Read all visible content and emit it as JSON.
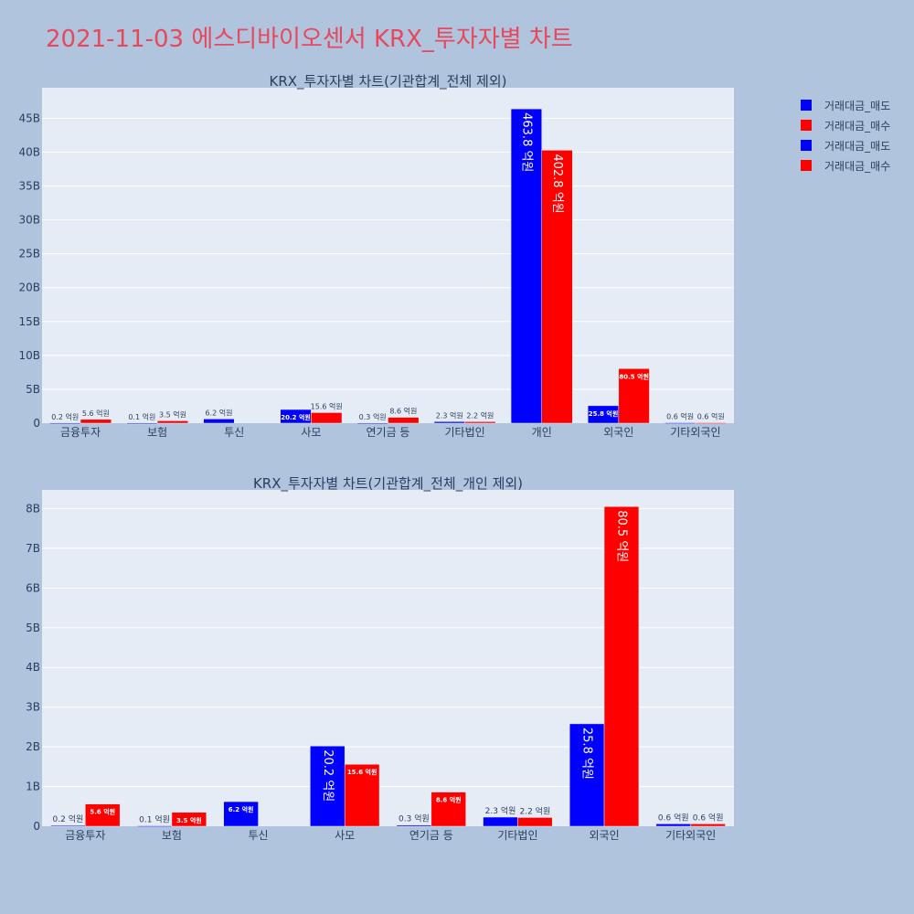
{
  "title": "2021-11-03 에스디바이오센서 KRX_투자자별 차트",
  "colors": {
    "sell": "#0000ff",
    "buy": "#ff0000",
    "plot_bg": "#e5ecf6",
    "page_bg": "#b0c4de"
  },
  "legend": [
    {
      "label": "거래대금_매도",
      "color": "#0000ff"
    },
    {
      "label": "거래대금_매수",
      "color": "#ff0000"
    },
    {
      "label": "거래대금_매도",
      "color": "#0000ff"
    },
    {
      "label": "거래대금_매수",
      "color": "#ff0000"
    }
  ],
  "chart_data": [
    {
      "type": "bar",
      "title": "KRX_투자자별 차트(기관합계_전체 제외)",
      "categories": [
        "금융투자",
        "보험",
        "투신",
        "사모",
        "연기금 등",
        "기타법인",
        "개인",
        "외국인",
        "기타외국인"
      ],
      "ylim": [
        0,
        49500000000
      ],
      "yticks": [
        0,
        5000000000,
        10000000000,
        15000000000,
        20000000000,
        25000000000,
        30000000000,
        35000000000,
        40000000000,
        45000000000
      ],
      "yticklabels": [
        "0",
        "5B",
        "10B",
        "15B",
        "20B",
        "25B",
        "30B",
        "35B",
        "40B",
        "45B"
      ],
      "grid": true,
      "legend_position": "right",
      "series": [
        {
          "name": "거래대금_매도",
          "color": "#0000ff",
          "values": [
            20000000,
            10000000,
            620000000,
            2020000000,
            30000000,
            230000000,
            46380000000,
            2580000000,
            60000000
          ],
          "labels": [
            "0.2 억원",
            "0.1 억원",
            "6.2 억원",
            "20.2 억원",
            "0.3 억원",
            "2.3 억원",
            "463.8 억원",
            "25.8 억원",
            "0.6 억원"
          ]
        },
        {
          "name": "거래대금_매수",
          "color": "#ff0000",
          "values": [
            560000000,
            350000000,
            0,
            1560000000,
            860000000,
            220000000,
            40280000000,
            8050000000,
            60000000
          ],
          "labels": [
            "5.6 억원",
            "3.5 억원",
            "",
            "15.6 억원",
            "8.6 억원",
            "2.2 억원",
            "402.8 억원",
            "80.5 억원",
            "0.6 억원"
          ]
        }
      ]
    },
    {
      "type": "bar",
      "title": "KRX_투자자별 차트(기관합계_전체_개인 제외)",
      "categories": [
        "금융투자",
        "보험",
        "투신",
        "사모",
        "연기금 등",
        "기타법인",
        "외국인",
        "기타외국인"
      ],
      "ylim": [
        0,
        8470000000
      ],
      "yticks": [
        0,
        1000000000,
        2000000000,
        3000000000,
        4000000000,
        5000000000,
        6000000000,
        7000000000,
        8000000000
      ],
      "yticklabels": [
        "0",
        "1B",
        "2B",
        "3B",
        "4B",
        "5B",
        "6B",
        "7B",
        "8B"
      ],
      "grid": true,
      "legend_position": "right",
      "series": [
        {
          "name": "거래대금_매도",
          "color": "#0000ff",
          "values": [
            20000000,
            10000000,
            620000000,
            2020000000,
            30000000,
            230000000,
            2580000000,
            60000000
          ],
          "labels": [
            "0.2 억원",
            "0.1 억원",
            "6.2 억원",
            "20.2 억원",
            "0.3 억원",
            "2.3 억원",
            "25.8 억원",
            "0.6 억원"
          ]
        },
        {
          "name": "거래대금_매수",
          "color": "#ff0000",
          "values": [
            560000000,
            350000000,
            0,
            1560000000,
            860000000,
            220000000,
            8050000000,
            60000000
          ],
          "labels": [
            "5.6 억원",
            "3.5 억원",
            "",
            "15.6 억원",
            "8.6 억원",
            "2.2 억원",
            "80.5 억원",
            "0.6 억원"
          ]
        }
      ]
    }
  ]
}
